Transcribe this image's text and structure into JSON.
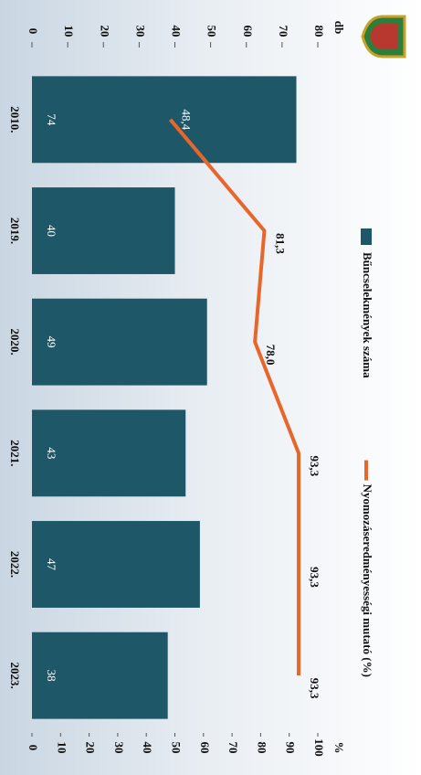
{
  "chart_data": {
    "type": "bar",
    "categories": [
      "2010.",
      "2019.",
      "2020.",
      "2021.",
      "2022.",
      "2023."
    ],
    "series": [
      {
        "name": "Bűncselekmények száma",
        "type": "bar",
        "color": "#1e5768",
        "values": [
          74,
          40,
          49,
          43,
          47,
          38
        ]
      },
      {
        "name": "Nyomozáseredményességi mutató (%)",
        "type": "line",
        "color": "#e8662a",
        "axis": "y2",
        "values": [
          48.4,
          81.3,
          78.0,
          93.3,
          93.3,
          93.3
        ],
        "value_labels": [
          "48,4",
          "81,3",
          "78,0",
          "93,3",
          "93,3",
          "93,3"
        ]
      }
    ],
    "ylabel": "db",
    "y2label": "%",
    "ylim": [
      0,
      80
    ],
    "yticks": [
      0,
      10,
      20,
      30,
      40,
      50,
      60,
      70,
      80
    ],
    "y2lim": [
      0,
      100
    ],
    "y2ticks": [
      0,
      10,
      20,
      30,
      40,
      50,
      60,
      70,
      80,
      90,
      100
    ],
    "legend": "top"
  }
}
